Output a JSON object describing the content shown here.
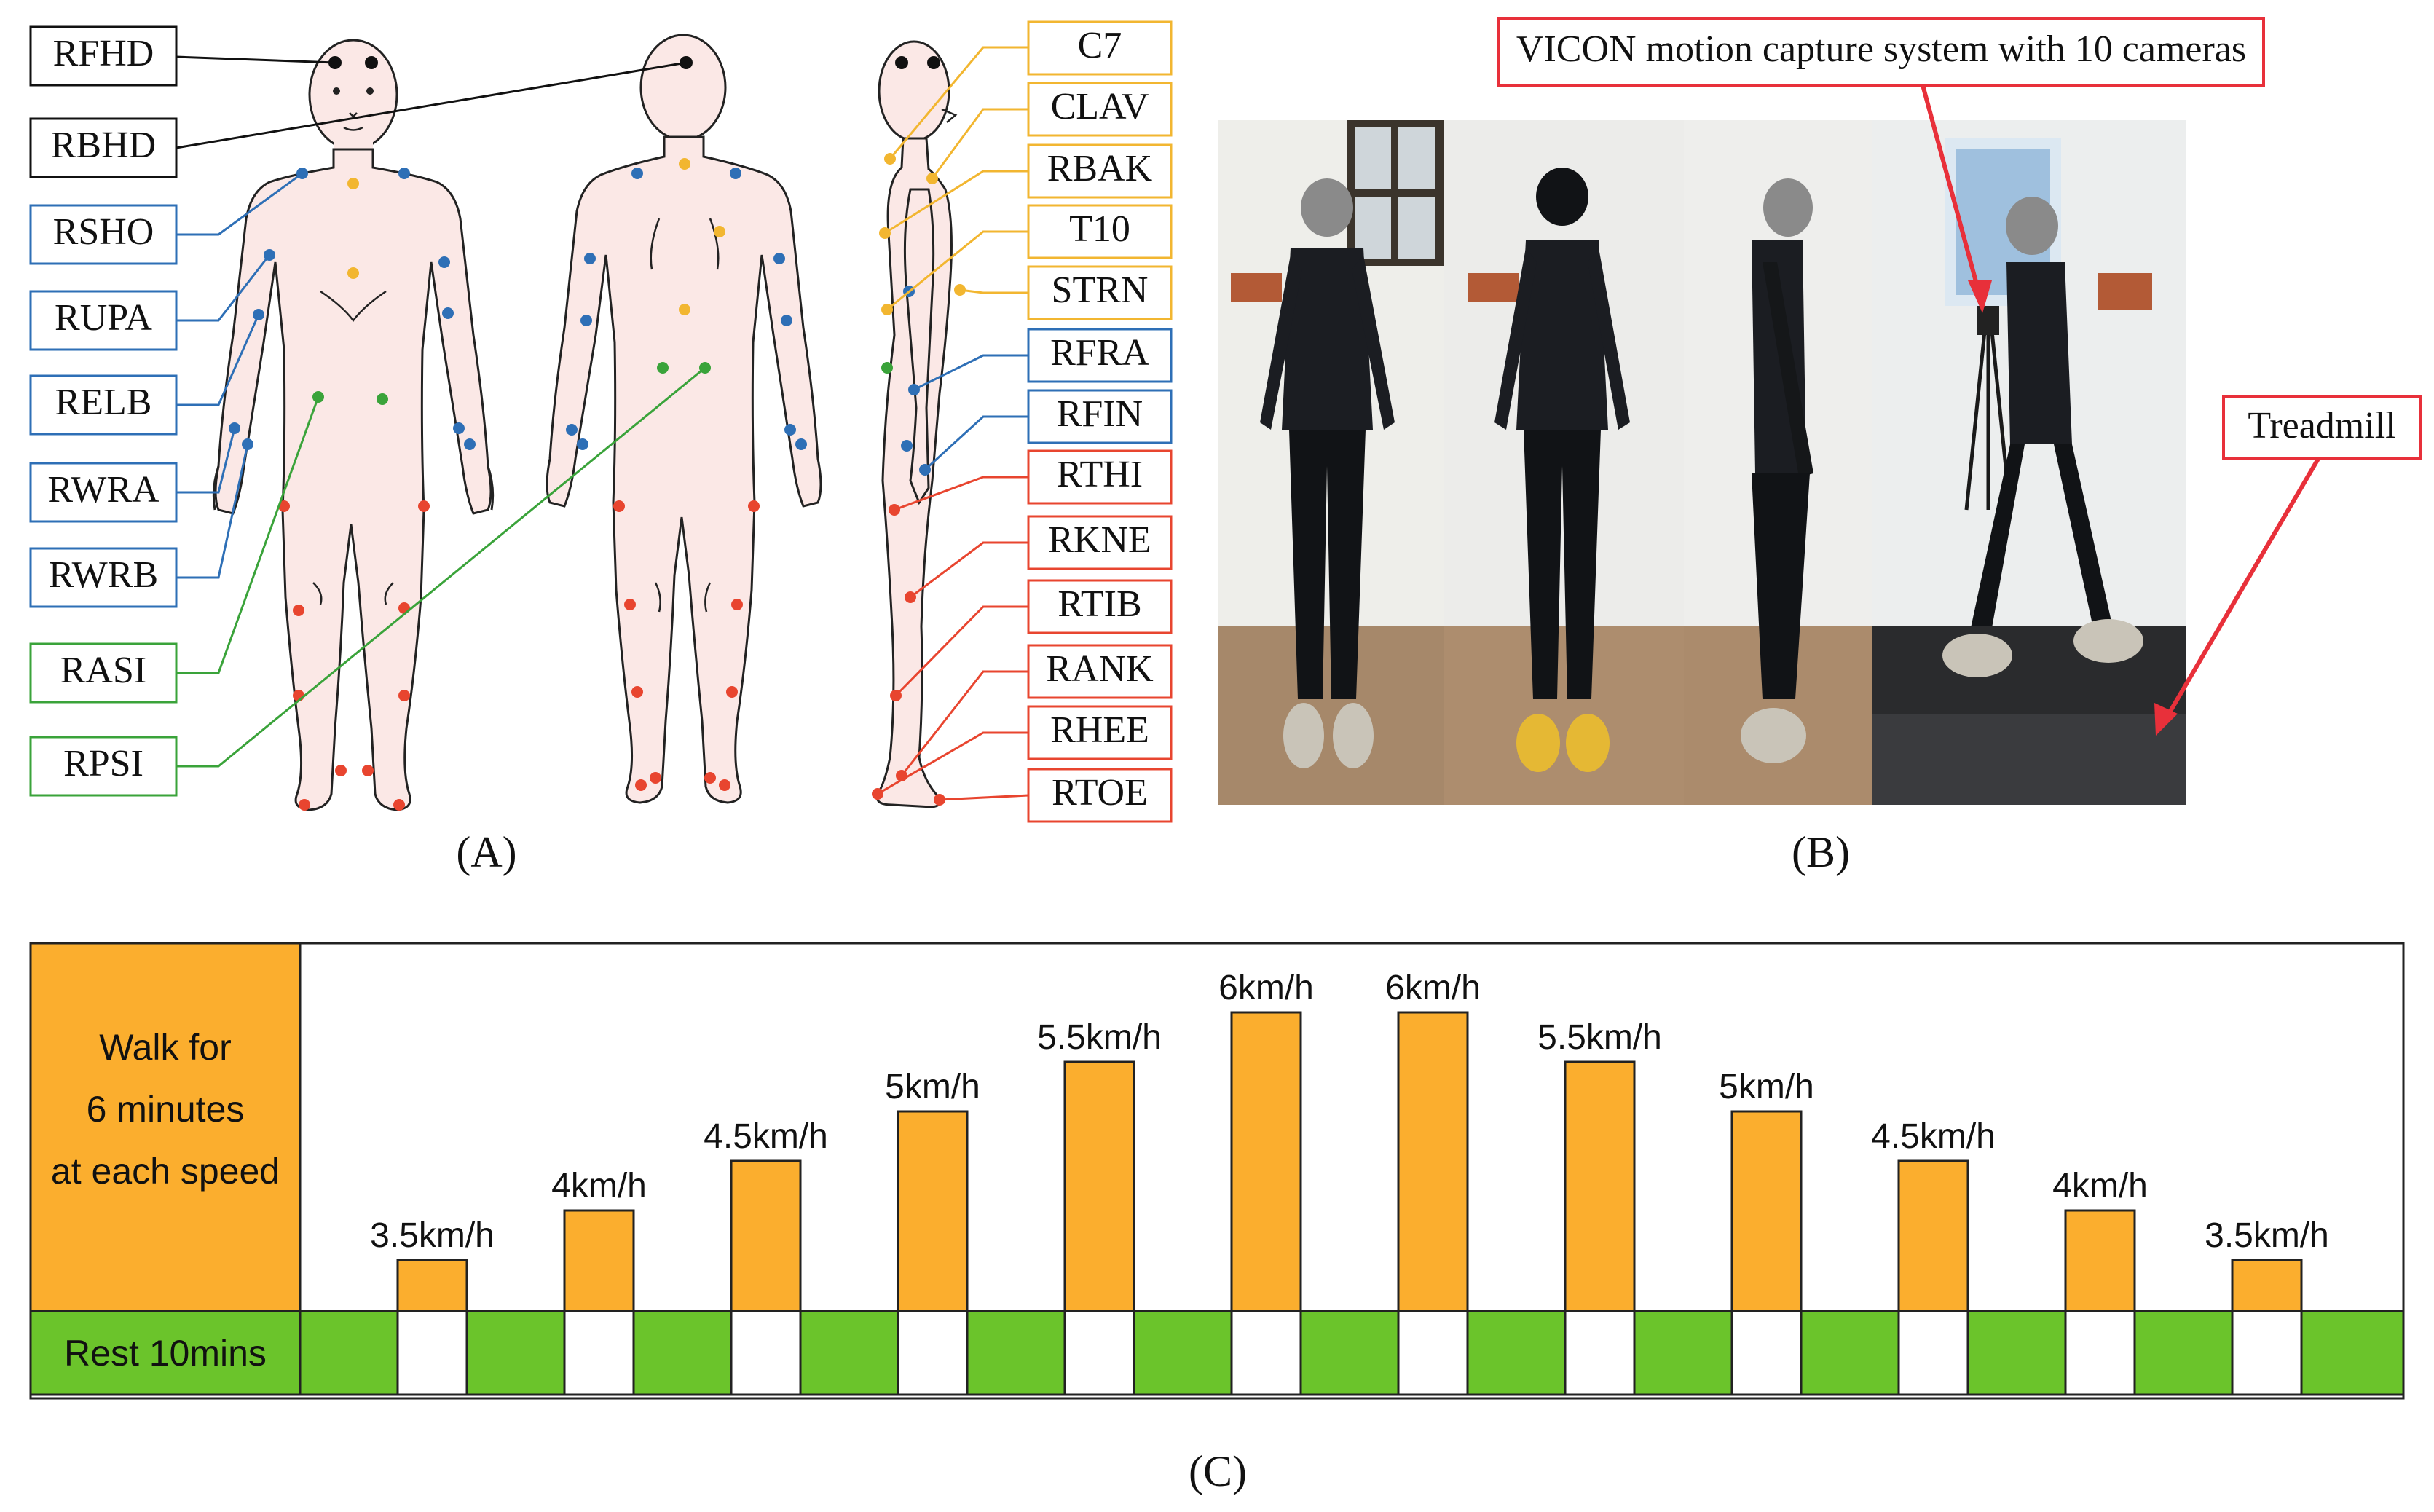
{
  "panels": {
    "a": "(A)",
    "b": "(B)",
    "c": "(C)"
  },
  "marker_labels": {
    "left": [
      {
        "text": "RFHD",
        "color": "black"
      },
      {
        "text": "RBHD",
        "color": "black"
      },
      {
        "text": "RSHO",
        "color": "blue"
      },
      {
        "text": "RUPA",
        "color": "blue"
      },
      {
        "text": "RELB",
        "color": "blue"
      },
      {
        "text": "RWRA",
        "color": "blue"
      },
      {
        "text": "RWRB",
        "color": "blue"
      },
      {
        "text": "RASI",
        "color": "green"
      },
      {
        "text": "RPSI",
        "color": "green"
      }
    ],
    "right": [
      {
        "text": "C7",
        "color": "yellow"
      },
      {
        "text": "CLAV",
        "color": "yellow"
      },
      {
        "text": "RBAK",
        "color": "yellow"
      },
      {
        "text": "T10",
        "color": "yellow"
      },
      {
        "text": "STRN",
        "color": "yellow"
      },
      {
        "text": "RFRA",
        "color": "blue"
      },
      {
        "text": "RFIN",
        "color": "blue"
      },
      {
        "text": "RTHI",
        "color": "red"
      },
      {
        "text": "RKNE",
        "color": "red"
      },
      {
        "text": "RTIB",
        "color": "red"
      },
      {
        "text": "RANK",
        "color": "red"
      },
      {
        "text": "RHEE",
        "color": "red"
      },
      {
        "text": "RTOE",
        "color": "red"
      }
    ]
  },
  "colors": {
    "black": "#111111",
    "blue": "#2e6fb6",
    "green": "#3aa33a",
    "yellow": "#f2b630",
    "red": "#e8452f",
    "orange": "#fbae2e",
    "rest_green": "#6bc42b",
    "skin": "#fbe8e6",
    "callout_red": "#e8303a"
  },
  "photo": {
    "vicon_label": "VICON motion capture system with 10 cameras",
    "treadmill_label": "Treadmill"
  },
  "protocol": {
    "walk_text": [
      "Walk for",
      "6 minutes",
      "at each speed"
    ],
    "rest_text": "Rest 10mins",
    "speeds": [
      {
        "label": "3.5km/h",
        "value": 3.5
      },
      {
        "label": "4km/h",
        "value": 4
      },
      {
        "label": "4.5km/h",
        "value": 4.5
      },
      {
        "label": "5km/h",
        "value": 5
      },
      {
        "label": "5.5km/h",
        "value": 5.5
      },
      {
        "label": "6km/h",
        "value": 6
      },
      {
        "label": "6km/h",
        "value": 6
      },
      {
        "label": "5.5km/h",
        "value": 5.5
      },
      {
        "label": "5km/h",
        "value": 5
      },
      {
        "label": "4.5km/h",
        "value": 4.5
      },
      {
        "label": "4km/h",
        "value": 4
      },
      {
        "label": "3.5km/h",
        "value": 3.5
      }
    ]
  }
}
